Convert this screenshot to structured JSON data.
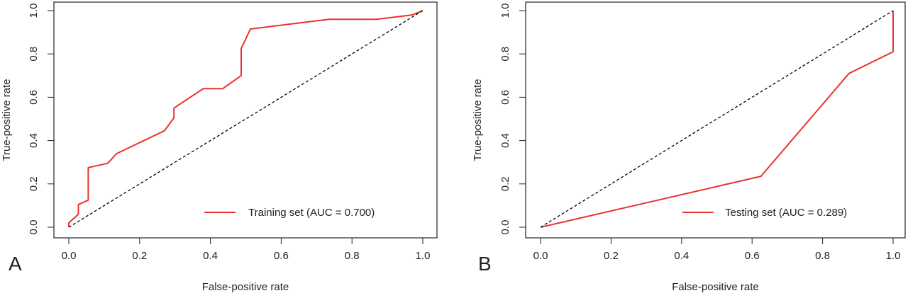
{
  "chart_data": [
    {
      "type": "line",
      "panel_label": "A",
      "xlabel": "False-positive rate",
      "ylabel": "True-positive rate",
      "xlim": [
        0,
        1
      ],
      "ylim": [
        0,
        1
      ],
      "xticks": [
        "0.0",
        "0.2",
        "0.4",
        "0.6",
        "0.8",
        "1.0"
      ],
      "yticks": [
        "0.0",
        "0.2",
        "0.4",
        "0.6",
        "0.8",
        "1.0"
      ],
      "grid": false,
      "legend_position": "bottom-right",
      "series": [
        {
          "name": "Training set (AUC = 0.700)",
          "color": "#e8322e",
          "x": [
            0.0,
            0.0,
            0.027,
            0.027,
            0.055,
            0.055,
            0.11,
            0.135,
            0.27,
            0.297,
            0.297,
            0.38,
            0.435,
            0.487,
            0.487,
            0.513,
            0.735,
            0.87,
            0.97,
            1.0
          ],
          "y": [
            0.0,
            0.02,
            0.06,
            0.105,
            0.125,
            0.275,
            0.295,
            0.34,
            0.445,
            0.505,
            0.55,
            0.64,
            0.64,
            0.7,
            0.825,
            0.915,
            0.96,
            0.96,
            0.98,
            1.0
          ]
        },
        {
          "name": "",
          "style": "dashed",
          "color": "#000000",
          "x": [
            0,
            1
          ],
          "y": [
            0,
            1
          ]
        }
      ]
    },
    {
      "type": "line",
      "panel_label": "B",
      "xlabel": "False-positive rate",
      "ylabel": "True-positive rate",
      "xlim": [
        0,
        1
      ],
      "ylim": [
        0,
        1
      ],
      "xticks": [
        "0.0",
        "0.2",
        "0.4",
        "0.6",
        "0.8",
        "1.0"
      ],
      "yticks": [
        "0.0",
        "0.2",
        "0.4",
        "0.6",
        "0.8",
        "1.0"
      ],
      "grid": false,
      "legend_position": "bottom-right",
      "series": [
        {
          "name": "Testing set (AUC = 0.289)",
          "color": "#e8322e",
          "x": [
            0.0,
            0.625,
            0.875,
            1.0,
            1.0
          ],
          "y": [
            0.0,
            0.235,
            0.71,
            0.81,
            1.0
          ]
        },
        {
          "name": "",
          "style": "dashed",
          "color": "#000000",
          "x": [
            0,
            1
          ],
          "y": [
            0,
            1
          ]
        }
      ]
    }
  ]
}
